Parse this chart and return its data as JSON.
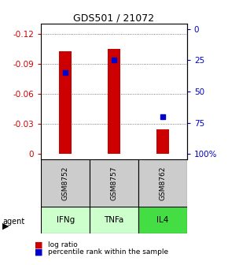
{
  "title": "GDS501 / 21072",
  "samples": [
    "GSM8752",
    "GSM8757",
    "GSM8762"
  ],
  "agents": [
    "IFNg",
    "TNFa",
    "IL4"
  ],
  "log_ratios": [
    -0.103,
    -0.105,
    -0.025
  ],
  "percentile_ranks": [
    35,
    25,
    70
  ],
  "ylim_left": [
    0.005,
    -0.13
  ],
  "ylim_right": [
    104,
    -4
  ],
  "left_ticks": [
    0,
    -0.03,
    -0.06,
    -0.09,
    -0.12
  ],
  "right_ticks": [
    100,
    75,
    50,
    25,
    0
  ],
  "right_tick_labels": [
    "100%",
    "75",
    "50",
    "25",
    "0"
  ],
  "bar_color": "#cc0000",
  "dot_color": "#0000cc",
  "agent_colors": [
    "#ccffcc",
    "#ccffcc",
    "#44dd44"
  ],
  "sample_bg": "#cccccc",
  "legend_bar_label": "log ratio",
  "legend_dot_label": "percentile rank within the sample",
  "bar_width": 0.25,
  "grid_color": "#555555",
  "fig_bg": "#ffffff"
}
